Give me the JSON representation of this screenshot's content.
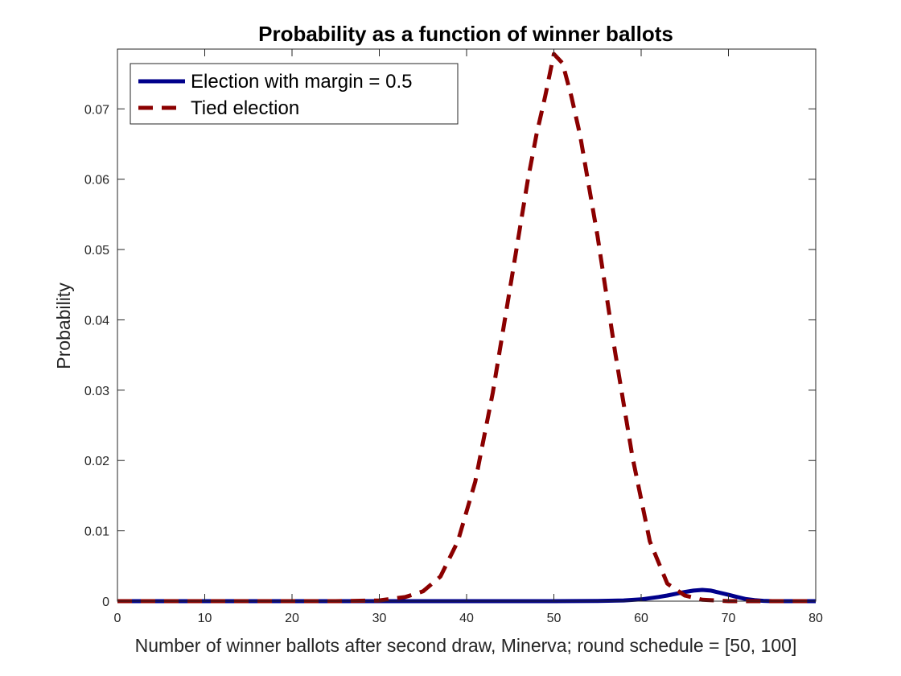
{
  "chart_data": {
    "type": "line",
    "title": "Probability as a function of winner ballots",
    "xlabel": "Number of winner ballots after second draw, Minerva; round schedule = [50, 100]",
    "ylabel": "Probability",
    "xlim": [
      0,
      80
    ],
    "ylim": [
      0,
      0.0785
    ],
    "xticks": [
      0,
      10,
      20,
      30,
      40,
      50,
      60,
      70,
      80
    ],
    "yticks": [
      0,
      0.01,
      0.02,
      0.03,
      0.04,
      0.05,
      0.06,
      0.07
    ],
    "xtick_labels": [
      "0",
      "10",
      "20",
      "30",
      "40",
      "50",
      "60",
      "70",
      "80"
    ],
    "ytick_labels": [
      "0",
      "0.01",
      "0.02",
      "0.03",
      "0.04",
      "0.05",
      "0.06",
      "0.07"
    ],
    "grid": false,
    "legend_position": "top-left",
    "series": [
      {
        "name": "Election with margin = 0.5",
        "color": "#00008b",
        "style": "solid",
        "x": [
          0,
          50,
          55,
          58,
          60,
          62,
          63,
          64,
          65,
          66,
          67,
          68,
          69,
          70,
          71,
          72,
          73,
          74,
          75,
          80
        ],
        "y": [
          0,
          0,
          3e-05,
          0.0001,
          0.00025,
          0.0006,
          0.0008,
          0.00105,
          0.0013,
          0.0015,
          0.0016,
          0.0015,
          0.0012,
          0.0009,
          0.0006,
          0.0003,
          0.00015,
          5e-05,
          0,
          0
        ]
      },
      {
        "name": "Tied election",
        "color": "#8b0000",
        "style": "dashed",
        "x": [
          0,
          25,
          30,
          33,
          35,
          37,
          39,
          41,
          43,
          45,
          47,
          48,
          49,
          50,
          51,
          52,
          53,
          55,
          57,
          59,
          61,
          63,
          65,
          67,
          70,
          75,
          80
        ],
        "y": [
          0,
          0,
          0.0001,
          0.0006,
          0.0014,
          0.0035,
          0.0085,
          0.017,
          0.0296,
          0.0447,
          0.0598,
          0.0663,
          0.0718,
          0.0778,
          0.0765,
          0.0718,
          0.0663,
          0.0519,
          0.0355,
          0.0205,
          0.0085,
          0.0025,
          0.0008,
          0.0002,
          0,
          0,
          0
        ]
      }
    ]
  }
}
